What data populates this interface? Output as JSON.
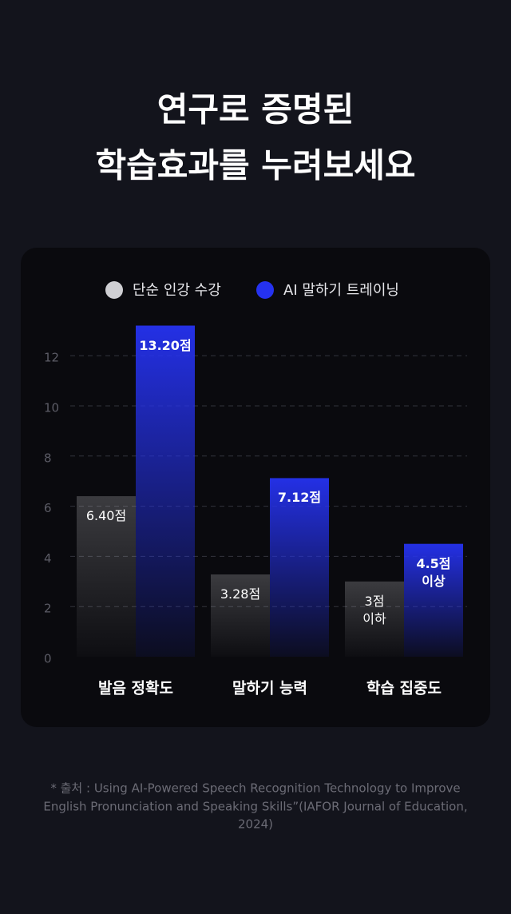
{
  "header": {
    "title_lines": [
      "연구로 증명된",
      "학습효과를 누려보세요"
    ]
  },
  "chart_data": {
    "type": "bar",
    "categories": [
      "발음 정확도",
      "말하기 능력",
      "학습 집중도"
    ],
    "series": [
      {
        "name": "단순 인강 수강",
        "color": "#cfcfd3",
        "values": [
          6.4,
          3.28,
          3
        ],
        "value_labels": [
          "6.40점",
          "3.28점",
          "3점\n이하"
        ]
      },
      {
        "name": "AI 말하기 트레이닝",
        "color": "#2532f0",
        "values": [
          13.2,
          7.12,
          4.5
        ],
        "value_labels": [
          "13.20점",
          "7.12점",
          "4.5점\n이상"
        ]
      }
    ],
    "ylim": [
      0,
      14
    ],
    "yticks": [
      0,
      2,
      4,
      6,
      8,
      10,
      12
    ],
    "grid": true
  },
  "footnote": {
    "lines": [
      "* 출처 : Using AI-Powered Speech Recognition Technology to Improve",
      "English Pronunciation and Speaking Skills”(IAFOR Journal of Education,",
      "2024)"
    ]
  }
}
